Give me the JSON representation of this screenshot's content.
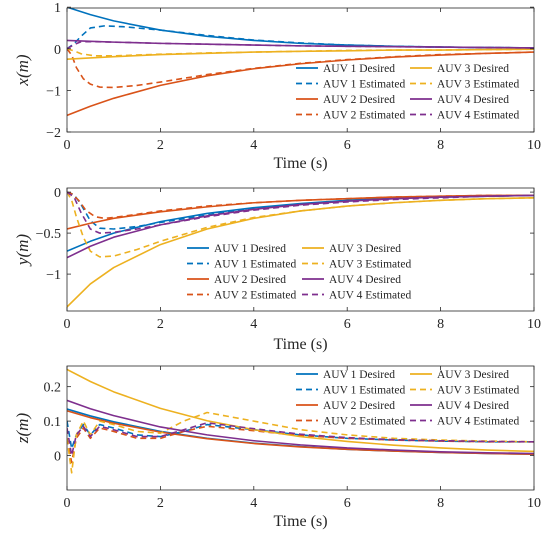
{
  "colors": {
    "AUV 1": "#0072BD",
    "AUV 2": "#D95319",
    "AUV 3": "#EDB120",
    "AUV 4": "#7E2F8E",
    "axis": "#262626"
  },
  "chart_data": [
    {
      "type": "line",
      "panel": "x",
      "xlabel": "Time (s)",
      "ylabel": "x(m)",
      "xlim": [
        0,
        10
      ],
      "ylim": [
        -2,
        0.98
      ],
      "xticks": [
        "0",
        "2",
        "4",
        "6",
        "8",
        "10"
      ],
      "yticks": [
        "-2",
        "-1",
        "0",
        "1"
      ],
      "legend_position": "lower-right",
      "legend_columns": 2,
      "legend_order": [
        "AUV 1 Desired",
        "AUV 3 Desired",
        "AUV 1 Estimated",
        "AUV 3 Estimated",
        "AUV 2 Desired",
        "AUV 4 Desired",
        "AUV 2 Estimated",
        "AUV 4 Estimated"
      ],
      "series": [
        {
          "name": "AUV 1 Desired",
          "style": "solid",
          "color_key": "AUV 1",
          "x": [
            0,
            0.5,
            1,
            2,
            3,
            4,
            5,
            6,
            7,
            8,
            9,
            10
          ],
          "y": [
            1.0,
            0.82,
            0.67,
            0.45,
            0.3,
            0.2,
            0.13,
            0.09,
            0.06,
            0.04,
            0.03,
            0.02
          ]
        },
        {
          "name": "AUV 1 Estimated",
          "style": "dashed",
          "color_key": "AUV 1",
          "x": [
            0,
            0.15,
            0.3,
            0.5,
            0.8,
            1.2,
            2,
            3,
            4,
            5,
            6,
            7,
            8,
            9,
            10
          ],
          "y": [
            0,
            0.12,
            0.3,
            0.5,
            0.55,
            0.53,
            0.45,
            0.32,
            0.21,
            0.14,
            0.09,
            0.06,
            0.04,
            0.03,
            0.02
          ]
        },
        {
          "name": "AUV 2 Desired",
          "style": "solid",
          "color_key": "AUV 2",
          "x": [
            0,
            0.5,
            1,
            2,
            3,
            4,
            5,
            6,
            7,
            8,
            9,
            10
          ],
          "y": [
            -1.6,
            -1.38,
            -1.19,
            -0.88,
            -0.65,
            -0.48,
            -0.36,
            -0.27,
            -0.2,
            -0.15,
            -0.11,
            -0.08
          ]
        },
        {
          "name": "AUV 2 Estimated",
          "style": "dashed",
          "color_key": "AUV 2",
          "x": [
            0,
            0.1,
            0.2,
            0.35,
            0.5,
            0.7,
            1.0,
            1.5,
            2,
            3,
            4,
            5,
            6,
            7,
            8,
            9,
            10
          ],
          "y": [
            0,
            -0.15,
            -0.45,
            -0.72,
            -0.85,
            -0.92,
            -0.93,
            -0.88,
            -0.8,
            -0.62,
            -0.47,
            -0.35,
            -0.26,
            -0.19,
            -0.14,
            -0.11,
            -0.08
          ]
        },
        {
          "name": "AUV 3 Desired",
          "style": "solid",
          "color_key": "AUV 3",
          "x": [
            0,
            0.5,
            1,
            2,
            3,
            4,
            5,
            6,
            7,
            8,
            9,
            10
          ],
          "y": [
            -0.25,
            -0.22,
            -0.19,
            -0.14,
            -0.11,
            -0.08,
            -0.06,
            -0.05,
            -0.03,
            -0.03,
            -0.02,
            -0.01
          ]
        },
        {
          "name": "AUV 3 Estimated",
          "style": "dashed",
          "color_key": "AUV 3",
          "x": [
            0,
            0.15,
            0.3,
            0.6,
            1,
            2,
            3,
            4,
            5,
            6,
            7,
            8,
            9,
            10
          ],
          "y": [
            0,
            -0.05,
            -0.12,
            -0.17,
            -0.17,
            -0.13,
            -0.1,
            -0.08,
            -0.06,
            -0.04,
            -0.03,
            -0.03,
            -0.02,
            -0.01
          ]
        },
        {
          "name": "AUV 4 Desired",
          "style": "solid",
          "color_key": "AUV 4",
          "x": [
            0,
            0.5,
            1,
            2,
            3,
            4,
            5,
            6,
            7,
            8,
            9,
            10
          ],
          "y": [
            0.2,
            0.18,
            0.16,
            0.13,
            0.11,
            0.09,
            0.07,
            0.06,
            0.05,
            0.04,
            0.03,
            0.02
          ]
        },
        {
          "name": "AUV 4 Estimated",
          "style": "dashed",
          "color_key": "AUV 4",
          "x": [
            0,
            0.15,
            0.3,
            0.6,
            1,
            2,
            3,
            4,
            5,
            6,
            7,
            8,
            9,
            10
          ],
          "y": [
            0,
            0.1,
            0.17,
            0.17,
            0.16,
            0.13,
            0.11,
            0.09,
            0.07,
            0.06,
            0.05,
            0.04,
            0.03,
            0.02
          ]
        }
      ]
    },
    {
      "type": "line",
      "panel": "y",
      "xlabel": "Time (s)",
      "ylabel": "y(m)",
      "xlim": [
        0,
        10
      ],
      "ylim": [
        -1.45,
        0.05
      ],
      "xticks": [
        "0",
        "2",
        "4",
        "6",
        "8",
        "10"
      ],
      "yticks": [
        "-1",
        "-0.5",
        "0"
      ],
      "legend_position": "lower-right",
      "legend_columns": 2,
      "legend_order": [
        "AUV 1 Desired",
        "AUV 3 Desired",
        "AUV 1 Estimated",
        "AUV 3 Estimated",
        "AUV 2 Desired",
        "AUV 4 Desired",
        "AUV 2 Estimated",
        "AUV 4 Estimated"
      ],
      "series": [
        {
          "name": "AUV 1 Desired",
          "style": "solid",
          "color_key": "AUV 1",
          "x": [
            0,
            0.5,
            1,
            2,
            3,
            4,
            5,
            6,
            7,
            8,
            9,
            10
          ],
          "y": [
            -0.72,
            -0.6,
            -0.5,
            -0.36,
            -0.26,
            -0.19,
            -0.14,
            -0.1,
            -0.07,
            -0.06,
            -0.05,
            -0.04
          ]
        },
        {
          "name": "AUV 1 Estimated",
          "style": "dashed",
          "color_key": "AUV 1",
          "x": [
            0,
            0.15,
            0.3,
            0.5,
            0.7,
            1.0,
            1.5,
            2,
            3,
            4,
            5,
            6,
            7,
            8,
            9,
            10
          ],
          "y": [
            0,
            -0.03,
            -0.15,
            -0.35,
            -0.44,
            -0.45,
            -0.42,
            -0.37,
            -0.28,
            -0.2,
            -0.15,
            -0.11,
            -0.08,
            -0.06,
            -0.05,
            -0.04
          ]
        },
        {
          "name": "AUV 2 Desired",
          "style": "solid",
          "color_key": "AUV 2",
          "x": [
            0,
            0.5,
            1,
            2,
            3,
            4,
            5,
            6,
            7,
            8,
            9,
            10
          ],
          "y": [
            -0.45,
            -0.38,
            -0.32,
            -0.24,
            -0.18,
            -0.13,
            -0.1,
            -0.08,
            -0.06,
            -0.05,
            -0.04,
            -0.04
          ]
        },
        {
          "name": "AUV 2 Estimated",
          "style": "dashed",
          "color_key": "AUV 2",
          "x": [
            0,
            0.1,
            0.25,
            0.4,
            0.6,
            0.8,
            1.0,
            1.5,
            2,
            3,
            4,
            5,
            6,
            7,
            8,
            9,
            10
          ],
          "y": [
            0,
            -0.02,
            -0.1,
            -0.22,
            -0.3,
            -0.32,
            -0.31,
            -0.27,
            -0.23,
            -0.17,
            -0.13,
            -0.1,
            -0.08,
            -0.06,
            -0.05,
            -0.04,
            -0.04
          ]
        },
        {
          "name": "AUV 3 Desired",
          "style": "solid",
          "color_key": "AUV 3",
          "x": [
            0,
            0.5,
            1,
            2,
            3,
            4,
            5,
            6,
            7,
            8,
            9,
            10
          ],
          "y": [
            -1.4,
            -1.12,
            -0.92,
            -0.64,
            -0.45,
            -0.32,
            -0.23,
            -0.17,
            -0.13,
            -0.1,
            -0.08,
            -0.07
          ]
        },
        {
          "name": "AUV 3 Estimated",
          "style": "dashed",
          "color_key": "AUV 3",
          "x": [
            0,
            0.1,
            0.2,
            0.35,
            0.5,
            0.7,
            1.0,
            1.5,
            2,
            3,
            4,
            5,
            6,
            7,
            8,
            9,
            10
          ],
          "y": [
            0,
            -0.1,
            -0.3,
            -0.55,
            -0.72,
            -0.79,
            -0.78,
            -0.7,
            -0.6,
            -0.43,
            -0.31,
            -0.23,
            -0.17,
            -0.13,
            -0.1,
            -0.08,
            -0.07
          ]
        },
        {
          "name": "AUV 4 Desired",
          "style": "solid",
          "color_key": "AUV 4",
          "x": [
            0,
            0.5,
            1,
            2,
            3,
            4,
            5,
            6,
            7,
            8,
            9,
            10
          ],
          "y": [
            -0.8,
            -0.66,
            -0.55,
            -0.4,
            -0.29,
            -0.21,
            -0.15,
            -0.11,
            -0.08,
            -0.06,
            -0.05,
            -0.04
          ]
        },
        {
          "name": "AUV 4 Estimated",
          "style": "dashed",
          "color_key": "AUV 4",
          "x": [
            0,
            0.15,
            0.3,
            0.5,
            0.7,
            1.0,
            1.5,
            2,
            3,
            4,
            5,
            6,
            7,
            8,
            9,
            10
          ],
          "y": [
            0,
            -0.06,
            -0.25,
            -0.45,
            -0.5,
            -0.49,
            -0.45,
            -0.4,
            -0.3,
            -0.22,
            -0.16,
            -0.12,
            -0.09,
            -0.07,
            -0.05,
            -0.04
          ]
        }
      ]
    },
    {
      "type": "line",
      "panel": "z",
      "xlabel": "Time (s)",
      "ylabel": "z(m)",
      "xlim": [
        0,
        10
      ],
      "ylim": [
        -0.1,
        0.26
      ],
      "xticks": [
        "0",
        "2",
        "4",
        "6",
        "8",
        "10"
      ],
      "yticks": [
        "0",
        "0.1",
        "0.2"
      ],
      "legend_position": "top-right",
      "legend_columns": 2,
      "legend_order": [
        "AUV 1 Desired",
        "AUV 3 Desired",
        "AUV 1 Estimated",
        "AUV 3 Estimated",
        "AUV 2 Desired",
        "AUV 4 Desired",
        "AUV 2 Estimated",
        "AUV 4 Estimated"
      ],
      "series": [
        {
          "name": "AUV 1 Desired",
          "style": "solid",
          "color_key": "AUV 1",
          "x": [
            0,
            0.5,
            1,
            2,
            3,
            4,
            5,
            6,
            7,
            8,
            9,
            10
          ],
          "y": [
            0.135,
            0.115,
            0.098,
            0.07,
            0.05,
            0.036,
            0.026,
            0.018,
            0.013,
            0.009,
            0.006,
            0.004
          ]
        },
        {
          "name": "AUV 1 Estimated",
          "style": "dashed",
          "color_key": "AUV 1",
          "x": [
            0,
            0.1,
            0.2,
            0.35,
            0.5,
            0.7,
            1.0,
            1.5,
            2,
            2.5,
            3,
            4,
            5,
            6,
            7,
            8,
            9,
            10
          ],
          "y": [
            0.1,
            0.02,
            0.06,
            0.09,
            0.06,
            0.09,
            0.08,
            0.06,
            0.055,
            0.07,
            0.09,
            0.075,
            0.06,
            0.05,
            0.045,
            0.042,
            0.04,
            0.04
          ]
        },
        {
          "name": "AUV 2 Desired",
          "style": "solid",
          "color_key": "AUV 2",
          "x": [
            0,
            0.5,
            1,
            2,
            3,
            4,
            5,
            6,
            7,
            8,
            9,
            10
          ],
          "y": [
            0.13,
            0.11,
            0.094,
            0.068,
            0.049,
            0.035,
            0.025,
            0.018,
            0.013,
            0.009,
            0.006,
            0.004
          ]
        },
        {
          "name": "AUV 2 Estimated",
          "style": "dashed",
          "color_key": "AUV 2",
          "x": [
            0,
            0.1,
            0.2,
            0.35,
            0.5,
            0.7,
            1.0,
            1.5,
            2,
            2.5,
            3,
            4,
            5,
            6,
            7,
            8,
            9,
            10
          ],
          "y": [
            0.05,
            -0.02,
            0.05,
            0.08,
            0.05,
            0.08,
            0.07,
            0.05,
            0.05,
            0.07,
            0.085,
            0.072,
            0.058,
            0.05,
            0.045,
            0.042,
            0.04,
            0.04
          ]
        },
        {
          "name": "AUV 3 Desired",
          "style": "solid",
          "color_key": "AUV 3",
          "x": [
            0,
            0.5,
            1,
            2,
            3,
            4,
            5,
            6,
            7,
            8,
            9,
            10
          ],
          "y": [
            0.25,
            0.215,
            0.185,
            0.137,
            0.101,
            0.075,
            0.055,
            0.041,
            0.03,
            0.022,
            0.016,
            0.012
          ]
        },
        {
          "name": "AUV 3 Estimated",
          "style": "dashed",
          "color_key": "AUV 3",
          "x": [
            0,
            0.1,
            0.2,
            0.35,
            0.5,
            0.7,
            1.0,
            1.5,
            2,
            2.5,
            3,
            4,
            5,
            6,
            7,
            8,
            9,
            10
          ],
          "y": [
            0.05,
            -0.05,
            0.06,
            0.1,
            0.06,
            0.1,
            0.09,
            0.07,
            0.065,
            0.1,
            0.125,
            0.1,
            0.075,
            0.06,
            0.05,
            0.045,
            0.042,
            0.04
          ]
        },
        {
          "name": "AUV 4 Desired",
          "style": "solid",
          "color_key": "AUV 4",
          "x": [
            0,
            0.5,
            1,
            2,
            3,
            4,
            5,
            6,
            7,
            8,
            9,
            10
          ],
          "y": [
            0.16,
            0.136,
            0.116,
            0.083,
            0.06,
            0.043,
            0.031,
            0.022,
            0.016,
            0.011,
            0.008,
            0.006
          ]
        },
        {
          "name": "AUV 4 Estimated",
          "style": "dashed",
          "color_key": "AUV 4",
          "x": [
            0,
            0.1,
            0.2,
            0.35,
            0.5,
            0.7,
            1.0,
            1.5,
            2,
            2.5,
            3,
            4,
            5,
            6,
            7,
            8,
            9,
            10
          ],
          "y": [
            0.08,
            0.0,
            0.06,
            0.085,
            0.055,
            0.085,
            0.075,
            0.055,
            0.055,
            0.075,
            0.095,
            0.078,
            0.062,
            0.052,
            0.046,
            0.043,
            0.041,
            0.04
          ]
        }
      ]
    }
  ]
}
